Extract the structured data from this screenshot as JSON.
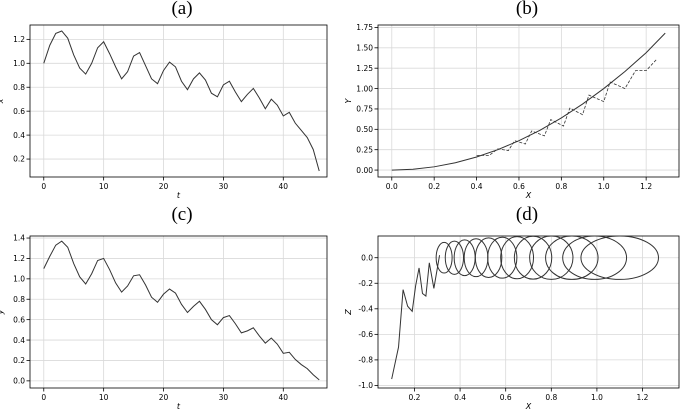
{
  "chart_data": [
    {
      "panel_label": "(a)",
      "type": "line",
      "xlabel": "t",
      "ylabel": "x",
      "xlim": [
        -2.3,
        47.3
      ],
      "ylim": [
        0.05,
        1.32
      ],
      "xticks": [
        0,
        10,
        20,
        30,
        40
      ],
      "yticks": [
        0.2,
        0.4,
        0.6,
        0.8,
        1.0,
        1.2
      ],
      "tick_labels_x": [
        "0",
        "10",
        "20",
        "30",
        "40"
      ],
      "tick_labels_y": [
        "0.2",
        "0.4",
        "0.6",
        "0.8",
        "1.0",
        "1.2"
      ],
      "grid": true,
      "series": [
        {
          "color": "#333333",
          "x": [
            0,
            1,
            2,
            3,
            4,
            5,
            6,
            7,
            8,
            9,
            10,
            11,
            12,
            13,
            14,
            15,
            16,
            17,
            18,
            19,
            20,
            21,
            22,
            23,
            24,
            25,
            26,
            27,
            28,
            29,
            30,
            31,
            32,
            33,
            34,
            35,
            36,
            37,
            38,
            39,
            40,
            41,
            42,
            43,
            44,
            45,
            46
          ],
          "y": [
            1.0,
            1.15,
            1.25,
            1.27,
            1.21,
            1.07,
            0.96,
            0.91,
            1.0,
            1.13,
            1.18,
            1.08,
            0.97,
            0.87,
            0.93,
            1.06,
            1.09,
            0.98,
            0.87,
            0.83,
            0.94,
            1.01,
            0.97,
            0.85,
            0.78,
            0.87,
            0.92,
            0.86,
            0.75,
            0.72,
            0.82,
            0.85,
            0.76,
            0.68,
            0.74,
            0.79,
            0.71,
            0.62,
            0.7,
            0.65,
            0.56,
            0.59,
            0.5,
            0.44,
            0.38,
            0.28,
            0.1
          ]
        }
      ]
    },
    {
      "panel_label": "(b)",
      "type": "line",
      "xlabel": "X",
      "ylabel": "Y",
      "xlim": [
        -0.065,
        1.355
      ],
      "ylim": [
        -0.085,
        1.78
      ],
      "xticks": [
        0.0,
        0.2,
        0.4,
        0.6,
        0.8,
        1.0,
        1.2
      ],
      "yticks": [
        0.0,
        0.25,
        0.5,
        0.75,
        1.0,
        1.25,
        1.5,
        1.75
      ],
      "tick_labels_x": [
        "0.0",
        "0.2",
        "0.4",
        "0.6",
        "0.8",
        "1.0",
        "1.2"
      ],
      "tick_labels_y": [
        "0.00",
        "0.25",
        "0.50",
        "0.75",
        "1.00",
        "1.25",
        "1.50",
        "1.75"
      ],
      "grid": true,
      "series": [
        {
          "color": "#333333",
          "x": [
            0.0,
            0.1,
            0.2,
            0.3,
            0.4,
            0.5,
            0.6,
            0.7,
            0.8,
            0.9,
            1.0,
            1.1,
            1.2,
            1.29
          ],
          "y": [
            0.0,
            0.01,
            0.04,
            0.09,
            0.16,
            0.25,
            0.36,
            0.49,
            0.64,
            0.81,
            1.0,
            1.21,
            1.44,
            1.68
          ]
        },
        {
          "color": "#333333",
          "dashed": true,
          "x": [
            0.4,
            0.46,
            0.5,
            0.55,
            0.58,
            0.63,
            0.66,
            0.72,
            0.75,
            0.81,
            0.84,
            0.9,
            0.93,
            1.0,
            1.03,
            1.1,
            1.15,
            1.2,
            1.25
          ],
          "y": [
            0.18,
            0.18,
            0.26,
            0.24,
            0.36,
            0.32,
            0.48,
            0.42,
            0.62,
            0.54,
            0.76,
            0.68,
            0.92,
            0.84,
            1.08,
            1.0,
            1.22,
            1.22,
            1.36
          ]
        }
      ]
    },
    {
      "panel_label": "(c)",
      "type": "line",
      "xlabel": "t",
      "ylabel": "y",
      "xlim": [
        -2.3,
        47.3
      ],
      "ylim": [
        -0.07,
        1.42
      ],
      "xticks": [
        0,
        10,
        20,
        30,
        40
      ],
      "yticks": [
        0.0,
        0.2,
        0.4,
        0.6,
        0.8,
        1.0,
        1.2,
        1.4
      ],
      "tick_labels_x": [
        "0",
        "10",
        "20",
        "30",
        "40"
      ],
      "tick_labels_y": [
        "0.0",
        "0.2",
        "0.4",
        "0.6",
        "0.8",
        "1.0",
        "1.2",
        "1.4"
      ],
      "grid": true,
      "series": [
        {
          "color": "#333333",
          "x": [
            0,
            1,
            2,
            3,
            4,
            5,
            6,
            7,
            8,
            9,
            10,
            11,
            12,
            13,
            14,
            15,
            16,
            17,
            18,
            19,
            20,
            21,
            22,
            23,
            24,
            25,
            26,
            27,
            28,
            29,
            30,
            31,
            32,
            33,
            34,
            35,
            36,
            37,
            38,
            39,
            40,
            41,
            42,
            43,
            44,
            45,
            46
          ],
          "y": [
            1.1,
            1.22,
            1.33,
            1.37,
            1.31,
            1.15,
            1.02,
            0.95,
            1.05,
            1.18,
            1.2,
            1.09,
            0.96,
            0.87,
            0.93,
            1.03,
            1.04,
            0.94,
            0.82,
            0.77,
            0.85,
            0.9,
            0.86,
            0.75,
            0.67,
            0.73,
            0.78,
            0.7,
            0.6,
            0.55,
            0.62,
            0.64,
            0.56,
            0.47,
            0.49,
            0.52,
            0.44,
            0.37,
            0.42,
            0.36,
            0.27,
            0.28,
            0.21,
            0.16,
            0.12,
            0.06,
            0.01
          ]
        }
      ]
    },
    {
      "panel_label": "(d)",
      "type": "line",
      "xlabel": "X",
      "ylabel": "Z",
      "xlim": [
        0.04,
        1.36
      ],
      "ylim": [
        -1.02,
        0.17
      ],
      "xticks": [
        0.2,
        0.4,
        0.6,
        0.8,
        1.0,
        1.2
      ],
      "yticks": [
        -1.0,
        -0.8,
        -0.6,
        -0.4,
        -0.2,
        0.0
      ],
      "tick_labels_x": [
        "0.2",
        "0.4",
        "0.6",
        "0.8",
        "1.0",
        "1.2"
      ],
      "tick_labels_y": [
        "-1.0",
        "-0.8",
        "-0.6",
        "-0.4",
        "-0.2",
        "0.0"
      ],
      "grid": true,
      "series": [
        {
          "color": "#333333",
          "x": [
            0.1,
            0.13,
            0.15,
            0.17,
            0.19,
            0.205,
            0.22,
            0.235,
            0.25,
            0.265,
            0.285,
            0.31
          ],
          "y": [
            -0.95,
            -0.7,
            -0.25,
            -0.38,
            -0.42,
            -0.22,
            -0.08,
            -0.28,
            -0.3,
            -0.04,
            -0.24,
            0.02
          ]
        }
      ],
      "loops": [
        {
          "cx": 0.33,
          "rx": 0.035,
          "ry": 0.12
        },
        {
          "cx": 0.375,
          "rx": 0.04,
          "ry": 0.13
        },
        {
          "cx": 0.42,
          "rx": 0.046,
          "ry": 0.14
        },
        {
          "cx": 0.47,
          "rx": 0.052,
          "ry": 0.148
        },
        {
          "cx": 0.525,
          "rx": 0.058,
          "ry": 0.155
        },
        {
          "cx": 0.585,
          "rx": 0.064,
          "ry": 0.16
        },
        {
          "cx": 0.65,
          "rx": 0.072,
          "ry": 0.165
        },
        {
          "cx": 0.72,
          "rx": 0.082,
          "ry": 0.168
        },
        {
          "cx": 0.8,
          "rx": 0.095,
          "ry": 0.17
        },
        {
          "cx": 0.89,
          "rx": 0.115,
          "ry": 0.17
        },
        {
          "cx": 0.99,
          "rx": 0.14,
          "ry": 0.17
        },
        {
          "cx": 1.1,
          "rx": 0.17,
          "ry": 0.17
        }
      ]
    }
  ]
}
